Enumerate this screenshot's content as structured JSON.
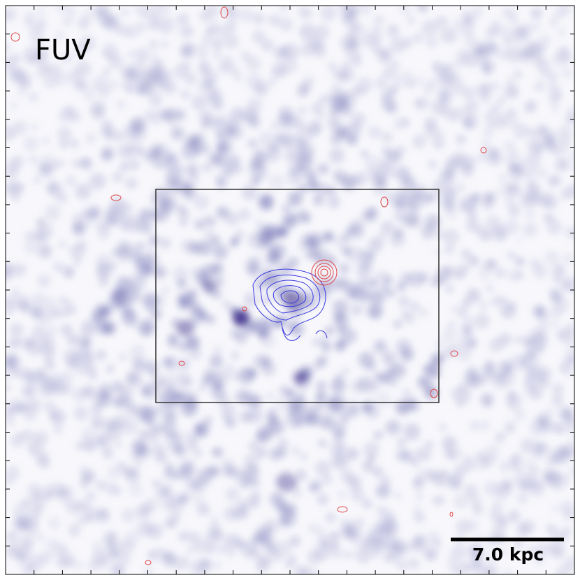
{
  "image": {
    "band_label": "FUV",
    "scale_bar_label": "7.0 kpc"
  }
}
